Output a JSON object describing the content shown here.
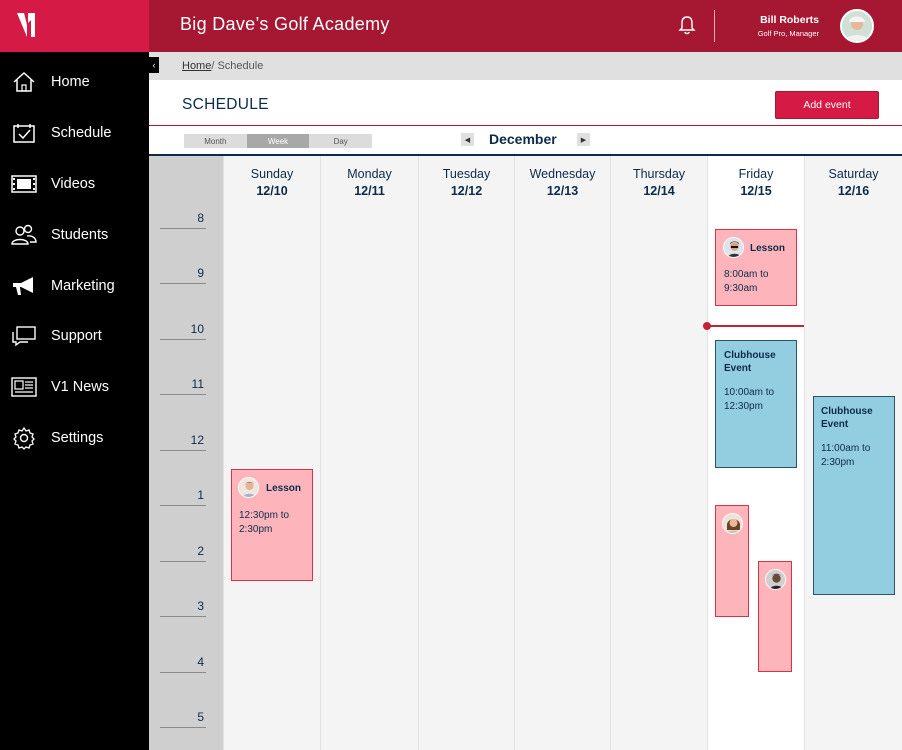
{
  "app": {
    "title": "Big Dave’s Golf Academy"
  },
  "user": {
    "name": "Bill Roberts",
    "role": "Golf Pro, Manager"
  },
  "sidebar": {
    "items": [
      {
        "label": "Home",
        "icon": "home-icon"
      },
      {
        "label": "Schedule",
        "icon": "calendar-check-icon"
      },
      {
        "label": "Videos",
        "icon": "film-icon"
      },
      {
        "label": "Students",
        "icon": "students-icon"
      },
      {
        "label": "Marketing",
        "icon": "megaphone-icon"
      },
      {
        "label": "Support",
        "icon": "chat-icon"
      },
      {
        "label": "V1 News",
        "icon": "newspaper-icon"
      },
      {
        "label": "Settings",
        "icon": "gear-icon"
      }
    ]
  },
  "breadcrumb": {
    "home": "Home",
    "separator": "/ ",
    "current": "Schedule"
  },
  "page": {
    "title": "SCHEDULE",
    "add_button": "Add event"
  },
  "view": {
    "options": [
      "Month",
      "Week",
      "Day"
    ],
    "selected": "Week",
    "month": "December"
  },
  "calendar": {
    "hours": [
      "8",
      "9",
      "10",
      "11",
      "12",
      "1",
      "2",
      "3",
      "4",
      "5"
    ],
    "days": [
      {
        "name": "Sunday",
        "date": "12/10"
      },
      {
        "name": "Monday",
        "date": "12/11"
      },
      {
        "name": "Tuesday",
        "date": "12/12"
      },
      {
        "name": "Wednesday",
        "date": "12/13"
      },
      {
        "name": "Thursday",
        "date": "12/14"
      },
      {
        "name": "Friday",
        "date": "12/15"
      },
      {
        "name": "Saturday",
        "date": "12/16"
      }
    ],
    "events": {
      "sunday_lesson": {
        "title": "Lesson",
        "time": "12:30pm to 2:30pm",
        "day": "Sunday",
        "type": "lesson"
      },
      "friday_lesson": {
        "title": "Lesson",
        "time": "8:00am to 9:30am",
        "day": "Friday",
        "type": "lesson"
      },
      "friday_clubhouse": {
        "title": "Clubhouse Event",
        "time": "10:00am to 12:30pm",
        "day": "Friday",
        "type": "club"
      },
      "saturday_clubhouse": {
        "title": "Clubhouse Event",
        "time": "11:00am to 2:30pm",
        "day": "Saturday",
        "type": "club"
      }
    }
  },
  "colors": {
    "brand_red": "#d51b45",
    "topbar_red": "#a61732",
    "navy": "#0c2b4b",
    "lesson_pink": "#fdb5bb",
    "club_blue": "#93cde0"
  }
}
